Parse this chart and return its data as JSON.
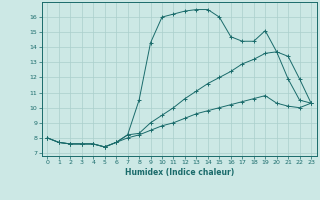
{
  "title": "",
  "xlabel": "Humidex (Indice chaleur)",
  "bg_color": "#cce8e5",
  "line_color": "#1a6b6b",
  "grid_color": "#aacfcc",
  "xlim": [
    -0.5,
    23.5
  ],
  "ylim": [
    6.8,
    17.0
  ],
  "yticks": [
    7,
    8,
    9,
    10,
    11,
    12,
    13,
    14,
    15,
    16
  ],
  "xticks": [
    0,
    1,
    2,
    3,
    4,
    5,
    6,
    7,
    8,
    9,
    10,
    11,
    12,
    13,
    14,
    15,
    16,
    17,
    18,
    19,
    20,
    21,
    22,
    23
  ],
  "line1_x": [
    0,
    1,
    2,
    3,
    4,
    5,
    6,
    7,
    8,
    9,
    10,
    11,
    12,
    13,
    14,
    15,
    16,
    17,
    18,
    19,
    20,
    21,
    22,
    23
  ],
  "line1_y": [
    8.0,
    7.7,
    7.6,
    7.6,
    7.6,
    7.4,
    7.7,
    8.2,
    10.5,
    14.3,
    16.0,
    16.2,
    16.4,
    16.5,
    16.5,
    16.0,
    14.7,
    14.4,
    14.4,
    15.1,
    13.7,
    11.9,
    10.5,
    10.3
  ],
  "line2_x": [
    0,
    1,
    2,
    3,
    4,
    5,
    6,
    7,
    8,
    9,
    10,
    11,
    12,
    13,
    14,
    15,
    16,
    17,
    18,
    19,
    20,
    21,
    22,
    23
  ],
  "line2_y": [
    8.0,
    7.7,
    7.6,
    7.6,
    7.6,
    7.4,
    7.7,
    8.2,
    8.3,
    9.0,
    9.5,
    10.0,
    10.6,
    11.1,
    11.6,
    12.0,
    12.4,
    12.9,
    13.2,
    13.6,
    13.7,
    13.4,
    11.9,
    10.3
  ],
  "line3_x": [
    0,
    1,
    2,
    3,
    4,
    5,
    6,
    7,
    8,
    9,
    10,
    11,
    12,
    13,
    14,
    15,
    16,
    17,
    18,
    19,
    20,
    21,
    22,
    23
  ],
  "line3_y": [
    8.0,
    7.7,
    7.6,
    7.6,
    7.6,
    7.4,
    7.7,
    8.0,
    8.2,
    8.5,
    8.8,
    9.0,
    9.3,
    9.6,
    9.8,
    10.0,
    10.2,
    10.4,
    10.6,
    10.8,
    10.3,
    10.1,
    10.0,
    10.3
  ]
}
